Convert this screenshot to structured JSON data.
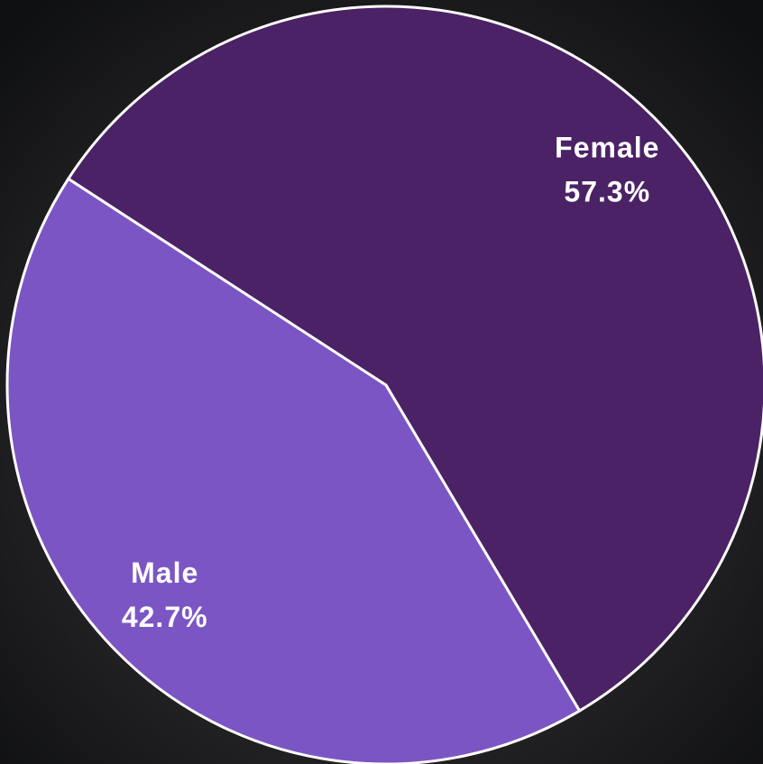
{
  "chart_data": {
    "type": "pie",
    "categories": [
      "Female",
      "Male"
    ],
    "values": [
      57.3,
      42.7
    ],
    "value_labels": [
      "57.3%",
      "42.7%"
    ],
    "colors": [
      "#4b2266",
      "#7c55c4"
    ]
  }
}
